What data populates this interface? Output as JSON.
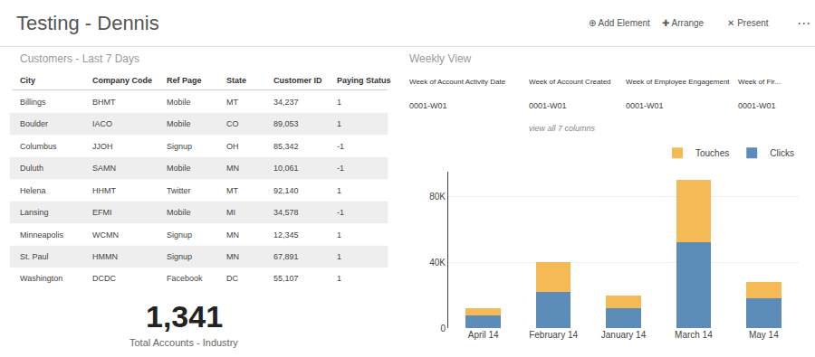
{
  "chart_data": {
    "type": "bar",
    "title": "Testing - Dennis",
    "stacked": true,
    "categories": [
      "April 14",
      "February 14",
      "January 14",
      "March 14",
      "May 14"
    ],
    "series": [
      {
        "name": "Clicks",
        "color": "#5b8db8",
        "values": [
          8000,
          22000,
          12000,
          52000,
          18000
        ]
      },
      {
        "name": "Touches",
        "color": "#f5b955",
        "values": [
          4000,
          18000,
          8000,
          38000,
          10000
        ]
      }
    ],
    "ylim": [
      0,
      95000
    ],
    "yticks": [
      0,
      {
        "value": 40000,
        "label": "40K"
      },
      {
        "value": 80000,
        "label": "80K"
      }
    ],
    "grid": true,
    "legend": "upper right",
    "annotations": [
      [
        "⊕ Add Element",
        "✚ Arrange",
        "✕ Present",
        "⋯"
      ],
      [
        "Customers - Last 7 Days"
      ],
      [
        "City",
        "Company Code",
        "Ref Page",
        "State",
        "Customer ID",
        "Paying Status"
      ],
      [
        "Billings",
        "BHMT",
        "Mobile",
        "MT",
        "34,237",
        "1"
      ],
      [
        "Boulder",
        "IACO",
        "Mobile",
        "CO",
        "89,053",
        "1"
      ],
      [
        "Columbus",
        "JJOH",
        "Signup",
        "OH",
        "85,342",
        "-1"
      ],
      [
        "Duluth",
        "SAMN",
        "Mobile",
        "MN",
        "10,061",
        "-1"
      ],
      [
        "Helena",
        "HHMT",
        "Twitter",
        "MT",
        "92,140",
        "1"
      ],
      [
        "Lansing",
        "EFMI",
        "Mobile",
        "MI",
        "34,578",
        "-1"
      ],
      [
        "Minneapolis",
        "WCMN",
        "Signup",
        "MN",
        "12,345",
        "1"
      ],
      [
        "St. Paul",
        "HMMN",
        "Signup",
        "MN",
        "67,891",
        "1"
      ],
      [
        "Washington",
        "DCDC",
        "Facebook",
        "DC",
        "55,107",
        "1"
      ],
      [
        "1,341"
      ],
      [
        "Total Accounts - Industry"
      ],
      [
        "Weekly View"
      ],
      [
        "Week of Account Activity Date",
        "Week of Account Created",
        "Week of Employee Engagement",
        "Week of Fir..."
      ],
      [
        "0001-W01",
        "0001-W01",
        "0001-W01",
        "0001-W01"
      ],
      [
        "view all 7 columns"
      ]
    ]
  }
}
